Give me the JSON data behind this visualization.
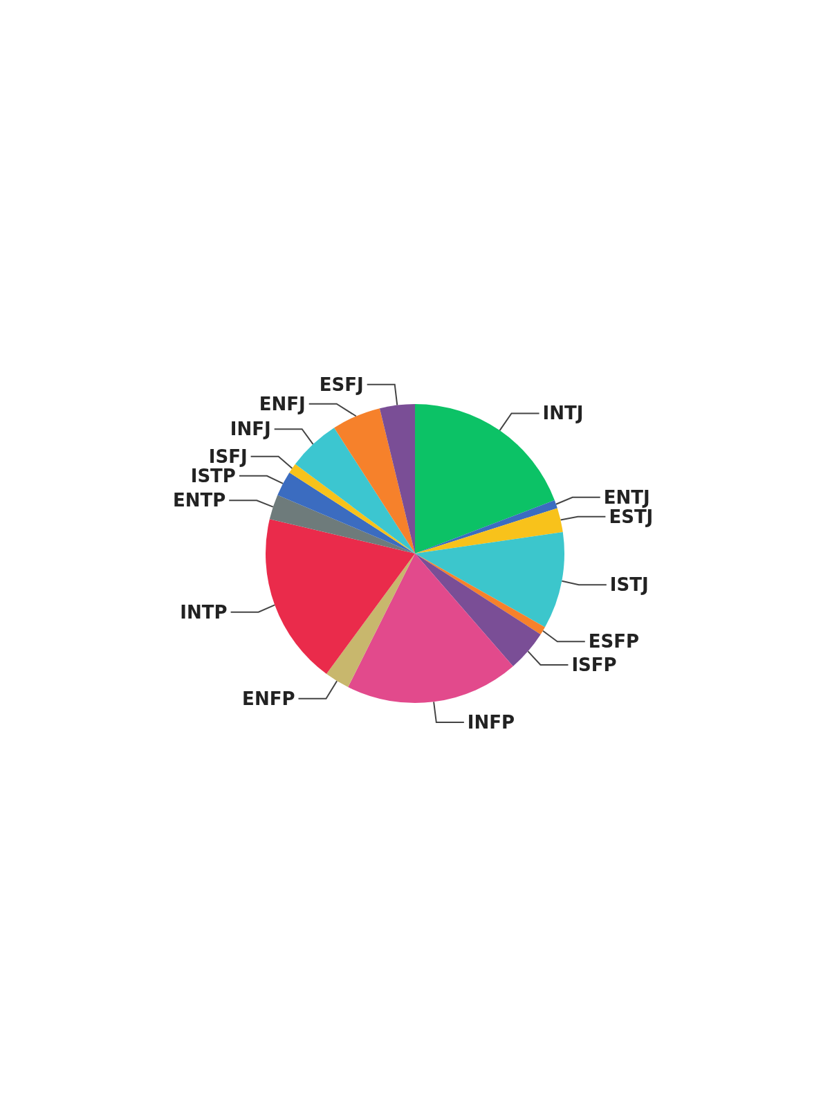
{
  "chart_data": {
    "type": "pie",
    "categories": [
      "INTJ",
      "ENTJ",
      "ESTJ",
      "ISTJ",
      "ESFP",
      "ISFP",
      "INFP",
      "ENFP",
      "INTP",
      "ENTP",
      "ISTP",
      "ISFJ",
      "INFJ",
      "ENFJ",
      "ESFJ"
    ],
    "values": [
      19.2,
      0.9,
      2.6,
      10.5,
      0.9,
      4.5,
      18.8,
      2.7,
      18.6,
      2.7,
      2.7,
      1.1,
      5.7,
      5.3,
      3.8
    ],
    "colors": [
      "#0cc266",
      "#3b6cc0",
      "#f8c21b",
      "#3cc6cc",
      "#f6812b",
      "#7a4e96",
      "#e24a8c",
      "#c8b76d",
      "#ea2b4b",
      "#6e7b7b",
      "#3b6cc0",
      "#f8c21b",
      "#3cc6d0",
      "#f6812b",
      "#7a4e96"
    ],
    "legend": false
  }
}
